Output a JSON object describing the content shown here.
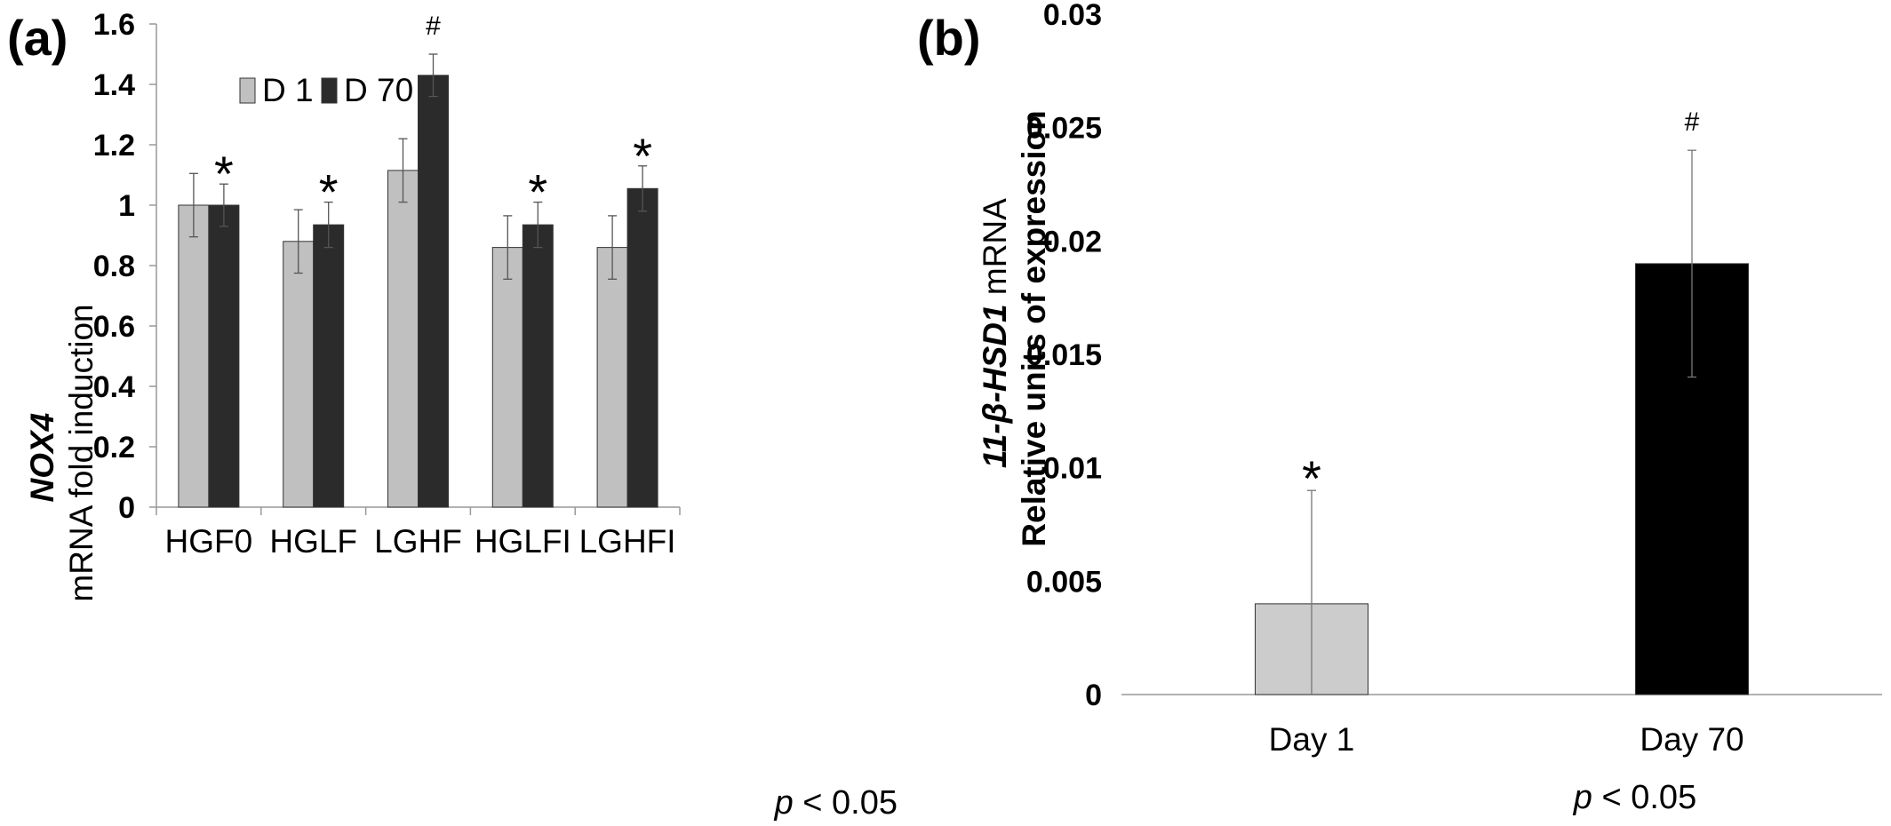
{
  "chart_data": [
    {
      "type": "bar",
      "panel_label": "(a)",
      "ylabel_gene": "NOX4",
      "ylabel": "mRNA fold induction",
      "ylim": [
        0,
        1.6
      ],
      "yticks": [
        "0",
        "0.2",
        "0.4",
        "0.6",
        "0.8",
        "1",
        "1.2",
        "1.4",
        "1.6"
      ],
      "categories": [
        "HGF0",
        "HGLF",
        "LGHF",
        "HGLFI",
        "LGHFI"
      ],
      "series": [
        {
          "name": "D 1",
          "color": "#c0c0c0",
          "values": [
            1.0,
            0.88,
            1.115,
            0.86,
            0.86
          ],
          "errors": [
            0.105,
            0.105,
            0.105,
            0.105,
            0.105
          ]
        },
        {
          "name": "D 70",
          "color": "#2b2b2b",
          "values": [
            1.0,
            0.935,
            1.43,
            0.935,
            1.055
          ],
          "errors": [
            0.07,
            0.075,
            0.07,
            0.075,
            0.075
          ]
        }
      ],
      "annotations": [
        {
          "category": "HGF0",
          "series": "D 70",
          "text": "*"
        },
        {
          "category": "HGLF",
          "series": "D 70",
          "text": "*"
        },
        {
          "category": "LGHF",
          "series": "D 70",
          "text": "#"
        },
        {
          "category": "HGLFI",
          "series": "D 70",
          "text": "*"
        },
        {
          "category": "LGHFI",
          "series": "D 70",
          "text": "*"
        }
      ],
      "legend": "top-left",
      "grid": false,
      "note": "p < 0.05"
    },
    {
      "type": "bar",
      "panel_label": "(b)",
      "ylabel_gene": "11-β-HSD1",
      "ylabel_gene_suffix": "mRNA",
      "ylabel": "Relative units of expression",
      "ylim": [
        0,
        0.03
      ],
      "yticks": [
        "0",
        "0.005",
        "0.01",
        "0.015",
        "0.02",
        "0.025",
        "0.03"
      ],
      "categories": [
        "Day 1",
        "Day 70"
      ],
      "values": [
        0.004,
        0.019
      ],
      "errors": [
        0.005,
        0.005
      ],
      "colors": [
        "#cccccc",
        "#000000"
      ],
      "annotations": [
        {
          "category": "Day 1",
          "text": "*"
        },
        {
          "category": "Day 70",
          "text": "#"
        }
      ],
      "grid": false,
      "note": "p < 0.05"
    }
  ]
}
